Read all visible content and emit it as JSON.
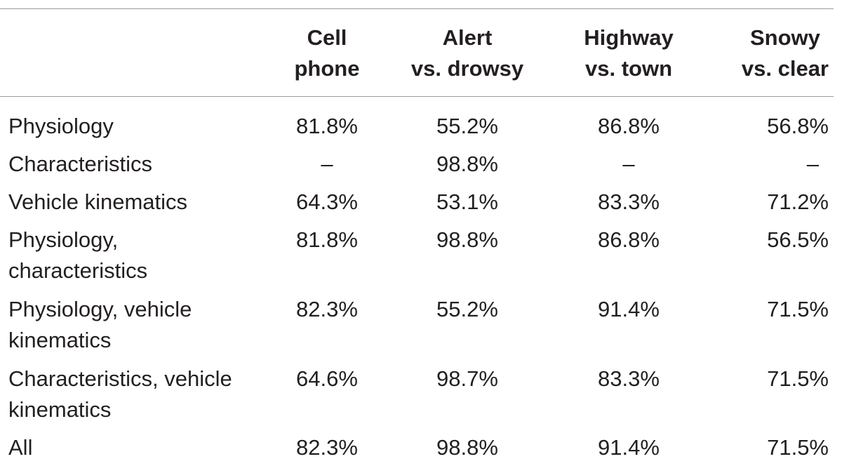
{
  "table": {
    "columns": [
      {
        "line1": "Cell",
        "line2": "phone"
      },
      {
        "line1": "Alert",
        "line2": "vs. drowsy"
      },
      {
        "line1": "Highway",
        "line2": "vs. town"
      },
      {
        "line1": "Snowy",
        "line2": "vs. clear"
      }
    ],
    "rows": [
      {
        "label_lines": [
          "Physiology"
        ],
        "values": [
          "81.8%",
          "55.2%",
          "86.8%",
          "56.8%"
        ]
      },
      {
        "label_lines": [
          "Characteristics"
        ],
        "values": [
          "–",
          "98.8%",
          "–",
          "–"
        ]
      },
      {
        "label_lines": [
          "Vehicle kinematics"
        ],
        "values": [
          "64.3%",
          "53.1%",
          "83.3%",
          "71.2%"
        ]
      },
      {
        "label_lines": [
          "Physiology,",
          "characteristics"
        ],
        "values": [
          "81.8%",
          "98.8%",
          "86.8%",
          "56.5%"
        ]
      },
      {
        "label_lines": [
          "Physiology, vehicle",
          "kinematics"
        ],
        "values": [
          "82.3%",
          "55.2%",
          "91.4%",
          "71.5%"
        ]
      },
      {
        "label_lines": [
          "Characteristics, vehicle",
          "kinematics"
        ],
        "values": [
          "64.6%",
          "98.7%",
          "83.3%",
          "71.5%"
        ]
      },
      {
        "label_lines": [
          "All"
        ],
        "values": [
          "82.3%",
          "98.8%",
          "91.4%",
          "71.5%"
        ]
      }
    ]
  }
}
